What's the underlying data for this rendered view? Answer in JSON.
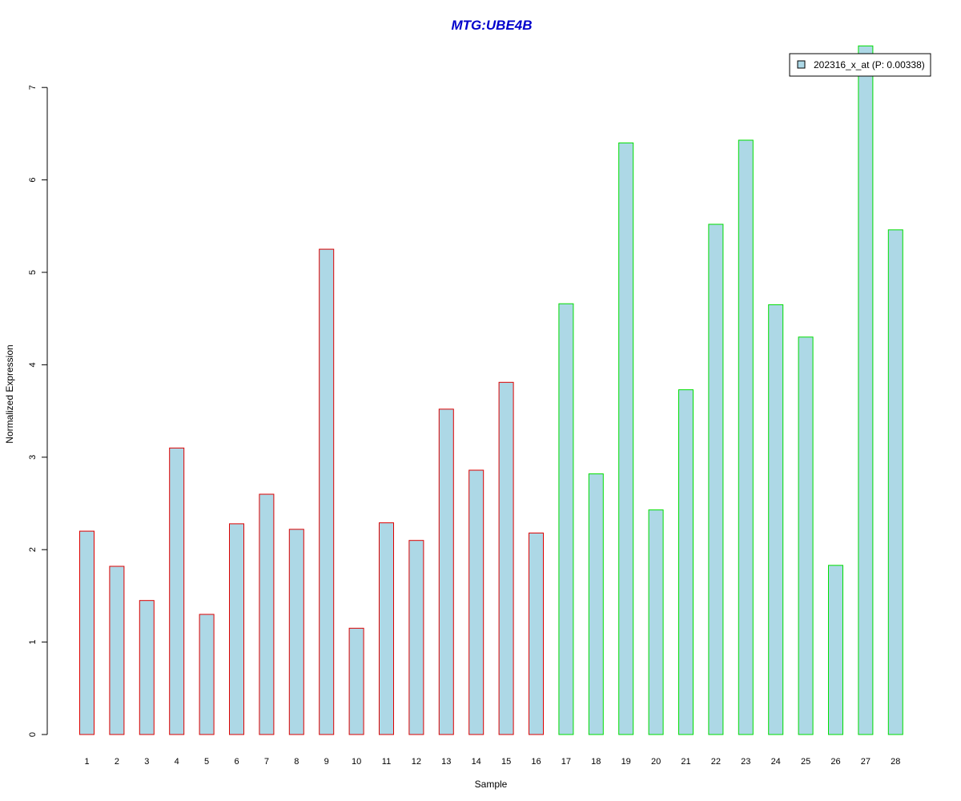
{
  "chart_data": {
    "type": "bar",
    "title": "MTG:UBE4B",
    "xlabel": "Sample",
    "ylabel": "Normalized Expression",
    "categories": [
      "1",
      "2",
      "3",
      "4",
      "5",
      "6",
      "7",
      "8",
      "9",
      "10",
      "11",
      "12",
      "13",
      "14",
      "15",
      "16",
      "17",
      "18",
      "19",
      "20",
      "21",
      "22",
      "23",
      "24",
      "25",
      "26",
      "27",
      "28"
    ],
    "series": [
      {
        "name": "202316_x_at (P: 0.00338)",
        "values": [
          2.2,
          1.82,
          1.45,
          3.1,
          1.3,
          2.28,
          2.6,
          2.22,
          5.25,
          1.15,
          2.29,
          2.1,
          3.52,
          2.86,
          3.81,
          2.18,
          4.66,
          2.82,
          6.4,
          2.43,
          3.73,
          5.52,
          6.43,
          4.65,
          4.3,
          1.83,
          7.45,
          5.46
        ]
      }
    ],
    "groups": [
      {
        "samples": [
          1,
          16
        ],
        "border_color": "#dd0000"
      },
      {
        "samples": [
          17,
          28
        ],
        "border_color": "#00dd00"
      }
    ],
    "yticks": [
      0,
      1,
      2,
      3,
      4,
      5,
      6,
      7
    ],
    "ylim": [
      0,
      7
    ],
    "grid": false,
    "legend_position": "top-right",
    "colors": {
      "bar_fill": "#add8e6",
      "title": "#0000cc",
      "axis": "#000000"
    }
  }
}
